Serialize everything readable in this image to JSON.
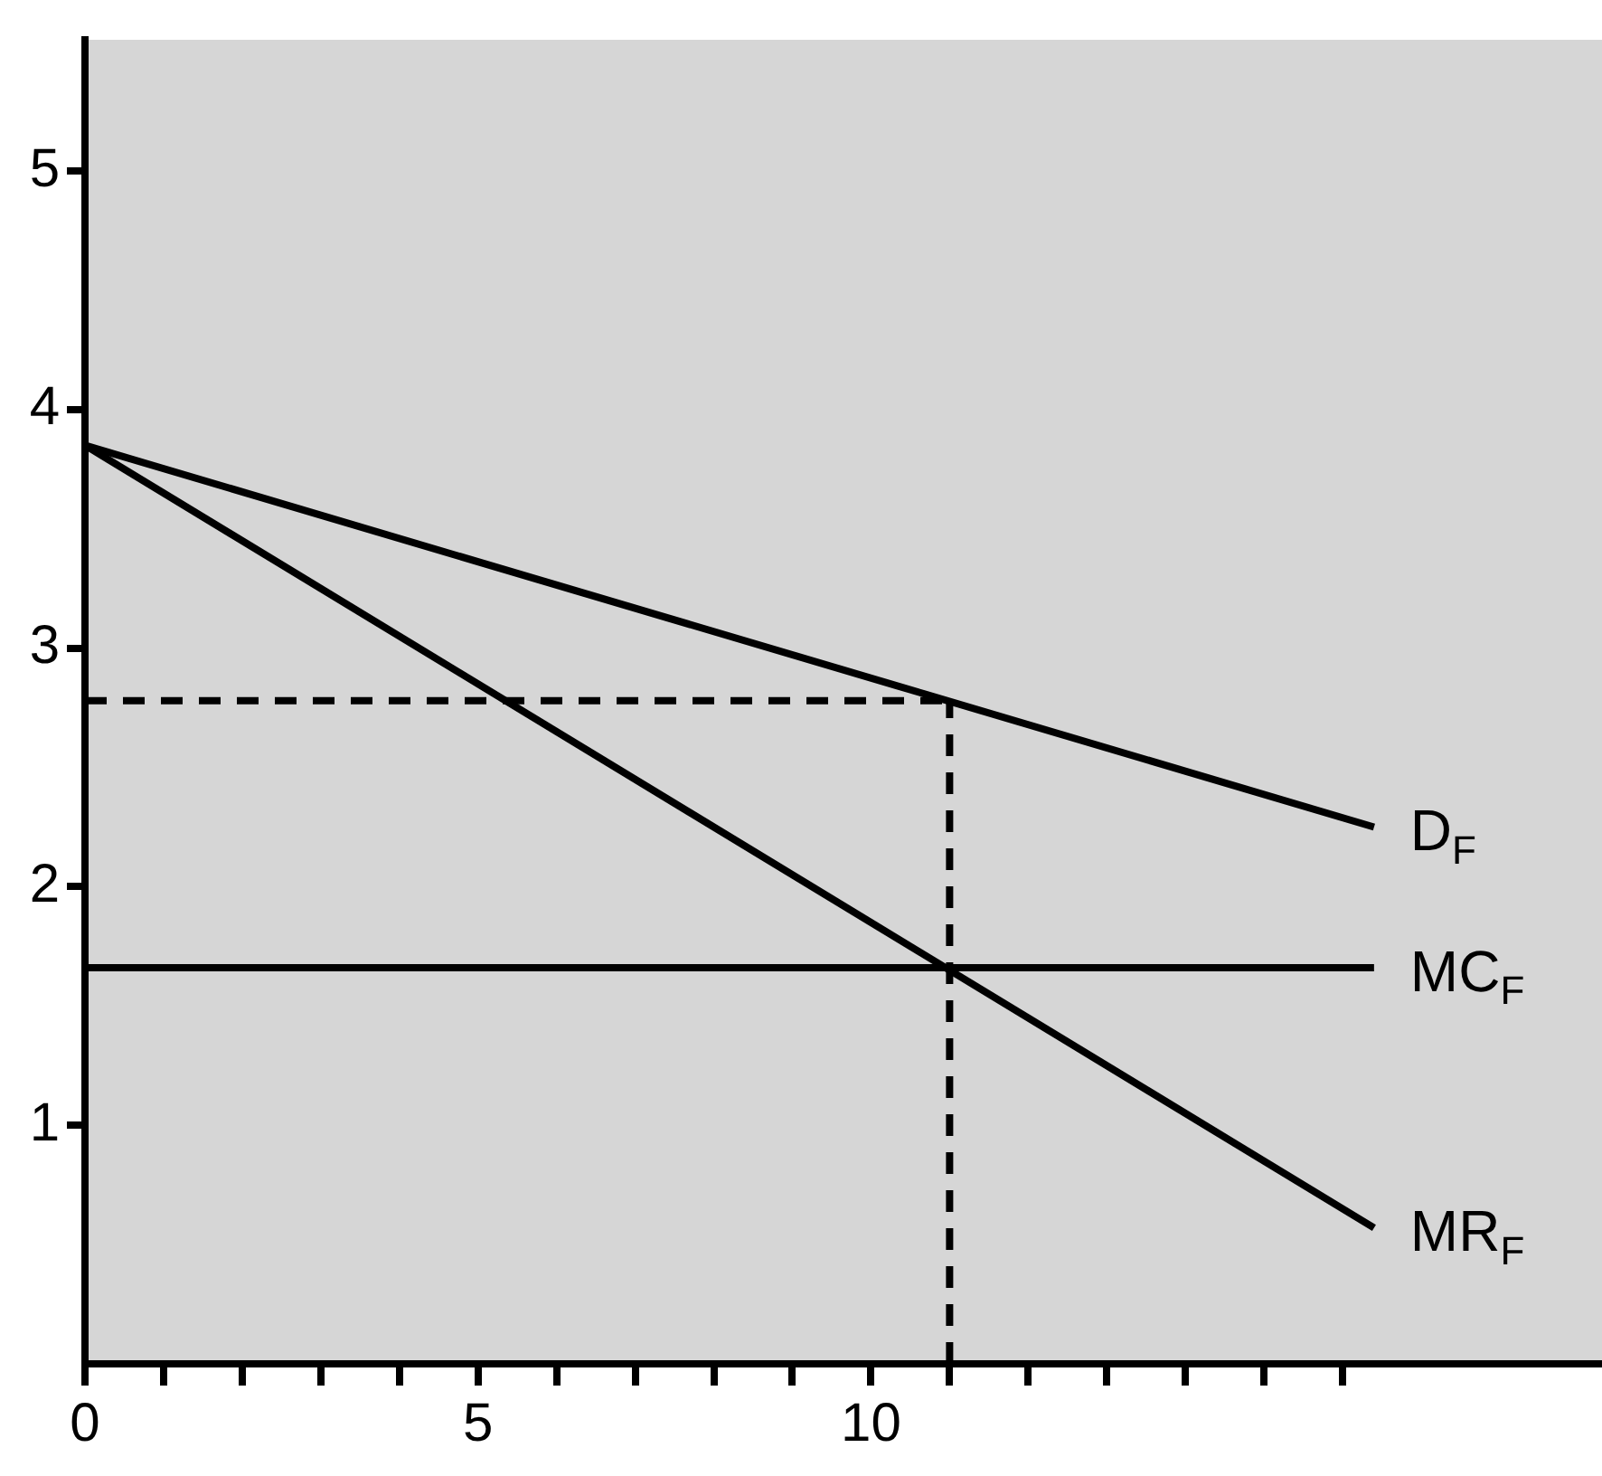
{
  "chart_data": {
    "type": "line",
    "xlim": [
      0,
      19.3
    ],
    "ylim": [
      0,
      5.55
    ],
    "xticks": [
      0,
      {
        "value": 1,
        "label": null
      },
      {
        "value": 2,
        "label": null
      },
      {
        "value": 3,
        "label": null
      },
      {
        "value": 4,
        "label": null
      },
      5,
      {
        "value": 6,
        "label": null
      },
      {
        "value": 7,
        "label": null
      },
      {
        "value": 8,
        "label": null
      },
      {
        "value": 9,
        "label": null
      },
      10,
      {
        "value": 11,
        "label": null
      },
      {
        "value": 12,
        "label": null
      },
      {
        "value": 13,
        "label": null
      },
      {
        "value": 14,
        "label": null
      },
      {
        "value": 15,
        "label": null
      },
      {
        "value": 16,
        "label": null
      }
    ],
    "yticks": [
      1,
      2,
      3,
      4,
      5
    ],
    "grid": false,
    "legend": false,
    "marker": "none",
    "line_style": "solid",
    "series": [
      {
        "name": "D$_{F}$",
        "color": "#000000",
        "x": [
          0,
          16.4
        ],
        "values": [
          3.85,
          2.25
        ]
      },
      {
        "name": "MC$_{F}$",
        "color": "#000000",
        "x": [
          0,
          16.4
        ],
        "values": [
          1.66,
          1.66
        ]
      },
      {
        "name": "MR$_{F}$",
        "color": "#000000",
        "x": [
          0,
          16.4
        ],
        "values": [
          3.85,
          0.57
        ]
      },
      {
        "color": "#000000",
        "x": [
          0,
          11
        ],
        "values": [
          2.78,
          2.78
        ],
        "line_style": "dashed"
      },
      {
        "color": "#000000",
        "x": [
          11,
          11
        ],
        "values": [
          0,
          2.78
        ],
        "line_style": "dashed"
      }
    ]
  }
}
